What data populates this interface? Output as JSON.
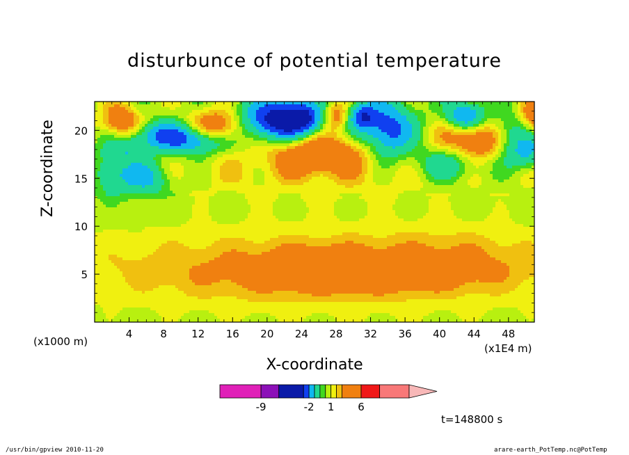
{
  "title": "disturbunce of potential temperature",
  "chart_data": {
    "type": "heatmap",
    "title": "disturbunce of potential temperature",
    "xlabel": "X-coordinate",
    "ylabel": "Z-coordinate",
    "x_unit_left": "(x1000 m)",
    "x_unit_right": "(x1E4 m)",
    "xlim": [
      0,
      51
    ],
    "ylim": [
      0,
      23
    ],
    "x_ticks": [
      4,
      8,
      12,
      16,
      20,
      24,
      28,
      32,
      36,
      40,
      44,
      48
    ],
    "x_tick_labels": [
      "4",
      "8",
      "12",
      "16",
      "20",
      "24",
      "28",
      "32",
      "36",
      "40",
      "44",
      "48"
    ],
    "y_ticks": [
      5,
      10,
      15,
      20
    ],
    "y_tick_labels": [
      "5",
      "10",
      "15",
      "20"
    ],
    "colorbar": {
      "bins": [
        {
          "lo": null,
          "hi": -9,
          "color": "#e020b8"
        },
        {
          "lo": -9,
          "hi": -7,
          "color": "#8c10b8"
        },
        {
          "lo": -7,
          "hi": -3,
          "color": "#0a1aa8"
        },
        {
          "lo": -3,
          "hi": -2,
          "color": "#1040f0"
        },
        {
          "lo": -2,
          "hi": -1,
          "color": "#10b8f0"
        },
        {
          "lo": -1,
          "hi": 0,
          "color": "#20d890"
        },
        {
          "lo": 0,
          "hi": 0.5,
          "color": "#40d820"
        },
        {
          "lo": 0.5,
          "hi": 1,
          "color": "#b8f010"
        },
        {
          "lo": 1,
          "hi": 1.5,
          "color": "#f0f010"
        },
        {
          "lo": 1.5,
          "hi": 2,
          "color": "#f0c010"
        },
        {
          "lo": 2,
          "hi": 6,
          "color": "#f08010"
        },
        {
          "lo": 6,
          "hi": 9,
          "color": "#f01818"
        },
        {
          "lo": 9,
          "hi": 13,
          "color": "#f87878"
        },
        {
          "lo": 13,
          "hi": null,
          "color": "#f8b8b8"
        }
      ],
      "labels": [
        {
          "text": "-9",
          "value": -9
        },
        {
          "text": "-2",
          "value": -2
        },
        {
          "text": "1",
          "value": 1
        },
        {
          "text": "6",
          "value": 6
        }
      ]
    },
    "field": {
      "background": 0.7,
      "features": [
        {
          "x": 26,
          "z": 5.5,
          "sx": 20,
          "sz": 2.8,
          "a": 1.6
        },
        {
          "x": 31,
          "z": 5.0,
          "sx": 9,
          "sz": 1.3,
          "a": 0.9
        },
        {
          "x": 26,
          "z": 6.0,
          "sx": 3.5,
          "sz": 1.2,
          "a": 1.0
        },
        {
          "x": 42,
          "z": 7.0,
          "sx": 7,
          "sz": 2.2,
          "a": 0.5
        },
        {
          "x": 28,
          "z": 16,
          "sx": 16,
          "sz": 2.2,
          "a": 0.8
        },
        {
          "x": 26,
          "z": 17.5,
          "sx": 3.5,
          "sz": 1.3,
          "a": 2.5
        },
        {
          "x": 45,
          "z": 19.0,
          "sx": 3,
          "sz": 1.5,
          "a": 3.0
        },
        {
          "x": 15,
          "z": 20.5,
          "sx": 2.5,
          "sz": 1.3,
          "a": 3.0
        },
        {
          "x": 3,
          "z": 21,
          "sx": 1.5,
          "sz": 1.2,
          "a": 2.5
        },
        {
          "x": 28,
          "z": 21.5,
          "sx": 1.2,
          "sz": 1.0,
          "a": 2.2
        },
        {
          "x": 51,
          "z": 21.5,
          "sx": 1.2,
          "sz": 1.2,
          "a": 2.5
        },
        {
          "x": 20,
          "z": 21.0,
          "sx": 3,
          "sz": 1.5,
          "a": -4.0
        },
        {
          "x": 24,
          "z": 21.3,
          "sx": 2,
          "sz": 1.2,
          "a": -3.5
        },
        {
          "x": 34,
          "z": 20.0,
          "sx": 2,
          "sz": 2.0,
          "a": -3.5
        },
        {
          "x": 31,
          "z": 21.5,
          "sx": 1.2,
          "sz": 1.0,
          "a": -3.0
        },
        {
          "x": 8,
          "z": 19.5,
          "sx": 2.5,
          "sz": 1.0,
          "a": -2.5
        },
        {
          "x": 12,
          "z": 18.8,
          "sx": 2.5,
          "sz": 1.0,
          "a": -2.5
        },
        {
          "x": 43,
          "z": 21.5,
          "sx": 1.5,
          "sz": 1.0,
          "a": -3.2
        },
        {
          "x": 48,
          "z": 19.5,
          "sx": 2,
          "sz": 1.5,
          "a": -2.5
        },
        {
          "x": 50,
          "z": 17.5,
          "sx": 2,
          "sz": 1.2,
          "a": -2.0
        },
        {
          "x": 41,
          "z": 16.5,
          "sx": 3,
          "sz": 1.3,
          "a": -2.0
        },
        {
          "x": 6,
          "z": 15.0,
          "sx": 2,
          "sz": 1.2,
          "a": -2.2
        },
        {
          "x": 2,
          "z": 15.5,
          "sx": 1.5,
          "sz": 1.5,
          "a": -1.8
        },
        {
          "x": 4,
          "z": 18.0,
          "sx": 2,
          "sz": 1.0,
          "a": -1.5
        }
      ]
    }
  },
  "time_label": "t=148800 s",
  "footer_left": "/usr/bin/gpview  2010-11-20",
  "footer_right": "arare-earth_PotTemp.nc@PotTemp"
}
